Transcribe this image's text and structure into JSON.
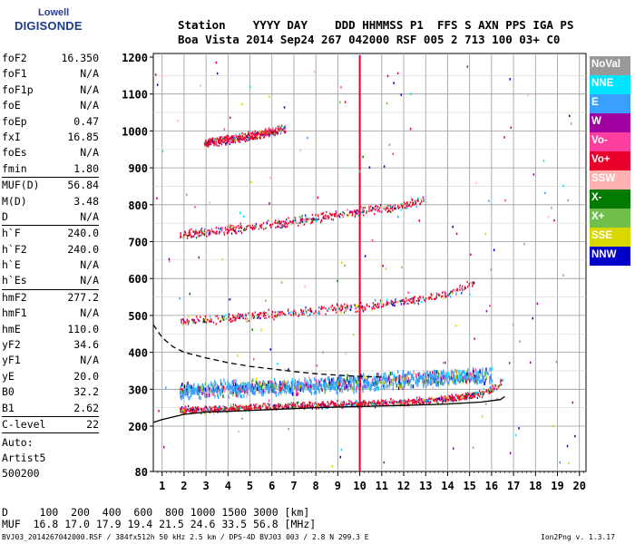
{
  "logo": {
    "line1": "Lowell",
    "line2": "DIGISONDE"
  },
  "header": {
    "labels": "Station    YYYY DAY    DDD HHMMSS P1  FFS S AXN PPS IGA PS",
    "values": "Boa Vista 2014 Sep24 267 042000 RSF 005 2 713 100 03+ C0"
  },
  "params": [
    {
      "name": "foF2",
      "value": "16.350"
    },
    {
      "name": "foF1",
      "value": "N/A"
    },
    {
      "name": "foF1p",
      "value": "N/A"
    },
    {
      "name": "foE",
      "value": "N/A"
    },
    {
      "name": "foEp",
      "value": "0.47"
    },
    {
      "name": "fxI",
      "value": "16.85"
    },
    {
      "name": "foEs",
      "value": "N/A"
    },
    {
      "name": "fmin",
      "value": "1.80"
    },
    {
      "sep": true
    },
    {
      "name": "MUF(D)",
      "value": "56.84"
    },
    {
      "name": "M(D)",
      "value": "3.48"
    },
    {
      "name": "D",
      "value": "N/A"
    },
    {
      "sep": true
    },
    {
      "name": "h`F",
      "value": "240.0"
    },
    {
      "name": "h`F2",
      "value": "240.0"
    },
    {
      "name": "h`E",
      "value": "N/A"
    },
    {
      "name": "h`Es",
      "value": "N/A"
    },
    {
      "sep": true
    },
    {
      "name": "hmF2",
      "value": "277.2"
    },
    {
      "name": "hmF1",
      "value": "N/A"
    },
    {
      "name": "hmE",
      "value": "110.0"
    },
    {
      "name": "yF2",
      "value": "34.6"
    },
    {
      "name": "yF1",
      "value": "N/A"
    },
    {
      "name": "yE",
      "value": "20.0"
    },
    {
      "name": "B0",
      "value": "32.2"
    },
    {
      "name": "B1",
      "value": "2.62"
    },
    {
      "sep": true
    },
    {
      "name": "C-level",
      "value": "22"
    },
    {
      "sep": true
    }
  ],
  "auto": {
    "line1": "Auto:",
    "line2": "Artist5",
    "line3": "500200"
  },
  "muf_table": {
    "d_row": "D     100  200  400  600  800 1000 1500 3000 [km]",
    "muf_row": "MUF  16.8 17.0 17.9 19.4 21.5 24.6 33.5 56.8 [MHz]"
  },
  "footer": {
    "left": "BVJ03_2014267042000.RSF / 384fx512h 50 kHz 2.5 km / DPS-4D BVJ03 003 / 2.8 N 299.3 E",
    "right": "Ion2Png v. 1.3.17"
  },
  "legend": [
    {
      "label": "NoVal",
      "bg": "#999999",
      "fg": "#ffffff"
    },
    {
      "label": "NNE",
      "bg": "#00e5ff",
      "fg": "#ffffff"
    },
    {
      "label": "E",
      "bg": "#3aa0ff",
      "fg": "#ffffff"
    },
    {
      "label": "W",
      "bg": "#a0009f",
      "fg": "#ffffff"
    },
    {
      "label": "Vo-",
      "bg": "#ff3fa0",
      "fg": "#ffffff"
    },
    {
      "label": "Vo+",
      "bg": "#e8002a",
      "fg": "#ffffff"
    },
    {
      "label": "SSW",
      "bg": "#ffb0b0",
      "fg": "#ffffff"
    },
    {
      "label": "X-",
      "bg": "#007a00",
      "fg": "#ffffff"
    },
    {
      "label": "X+",
      "bg": "#6fbf4a",
      "fg": "#ffffff"
    },
    {
      "label": "SSE",
      "bg": "#d8d800",
      "fg": "#ffffff"
    },
    {
      "label": "NNW",
      "bg": "#0000c8",
      "fg": "#ffffff"
    }
  ],
  "chart_data": {
    "type": "scatter",
    "title": "",
    "xlabel": "",
    "ylabel": "",
    "xlim": [
      0.6,
      20.3
    ],
    "ylim": [
      80,
      1200
    ],
    "x_ticks": [
      1,
      2,
      3,
      4,
      5,
      6,
      7,
      8,
      9,
      10,
      11,
      12,
      13,
      14,
      15,
      16,
      17,
      18,
      19,
      20
    ],
    "y_ticks": [
      80,
      200,
      300,
      400,
      500,
      600,
      700,
      800,
      900,
      1000,
      1100,
      1200
    ],
    "grid": true,
    "echo_traces": [
      {
        "name": "Vo+",
        "color": "#e8002a",
        "trace": "first-hop",
        "x": [
          1.8,
          4,
          6,
          8,
          10,
          12,
          14,
          15.5,
          16.3,
          16.5
        ],
        "y": [
          245,
          250,
          255,
          260,
          262,
          266,
          276,
          290,
          310,
          330
        ]
      },
      {
        "name": "Vo+",
        "color": "#e8002a",
        "trace": "second-hop",
        "x": [
          1.8,
          4,
          6,
          8,
          10,
          12,
          14,
          15.2
        ],
        "y": [
          485,
          495,
          505,
          515,
          525,
          540,
          560,
          590
        ]
      },
      {
        "name": "Vo+",
        "color": "#e8002a",
        "trace": "third-hop",
        "x": [
          1.8,
          4,
          6,
          8,
          10,
          12,
          12.9
        ],
        "y": [
          720,
          735,
          750,
          765,
          785,
          800,
          815
        ]
      },
      {
        "name": "Vo+",
        "color": "#e8002a",
        "trace": "fourth-hop",
        "x": [
          2.9,
          4,
          5,
          6,
          6.6
        ],
        "y": [
          968,
          978,
          988,
          1000,
          1010
        ]
      },
      {
        "name": "E",
        "color": "#3aa0ff",
        "trace": "spread-F",
        "x": [
          1.8,
          4,
          6,
          8,
          10,
          12,
          14,
          16
        ],
        "y": [
          300,
          305,
          310,
          315,
          320,
          330,
          335,
          340
        ]
      }
    ],
    "model_profiles": [
      {
        "style": "solid",
        "x": [
          0.6,
          1,
          2,
          3,
          4,
          6,
          8,
          10,
          12,
          14,
          15.5,
          16.4,
          16.6
        ],
        "y": [
          210,
          218,
          232,
          238,
          240,
          245,
          250,
          253,
          256,
          260,
          265,
          272,
          280
        ]
      },
      {
        "style": "dashed",
        "x": [
          0.6,
          1,
          1.5,
          2,
          3,
          4,
          5,
          6,
          7,
          8,
          9,
          10,
          11
        ],
        "y": [
          475,
          440,
          415,
          400,
          385,
          372,
          362,
          355,
          348,
          342,
          338,
          335,
          333
        ]
      }
    ]
  }
}
